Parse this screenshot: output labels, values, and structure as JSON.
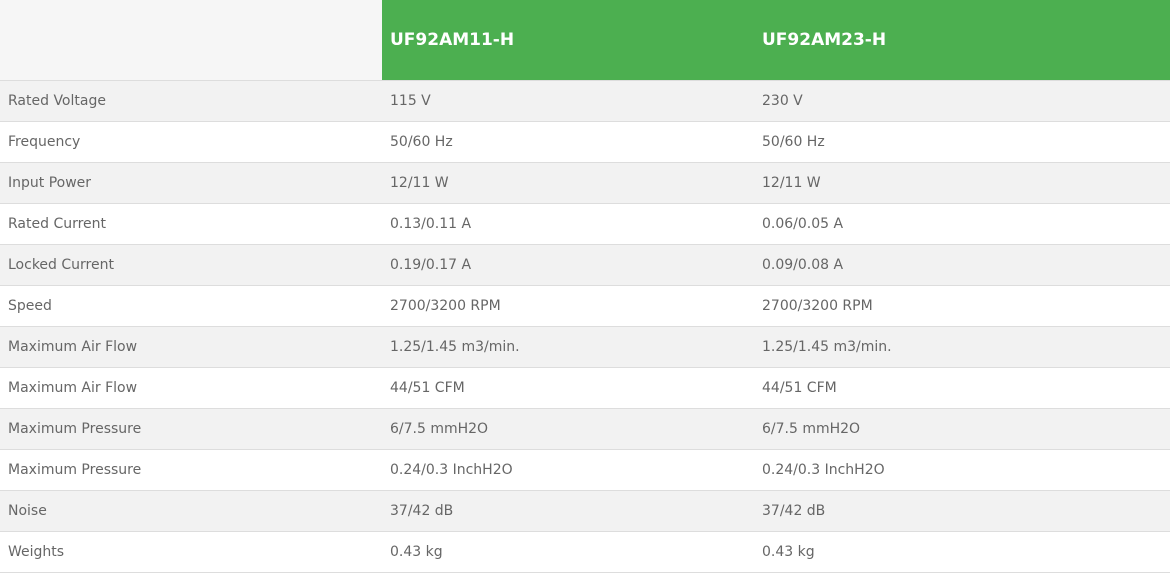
{
  "header": {
    "blank": "",
    "models": [
      "UF92AM11-H",
      "UF92AM23-H"
    ]
  },
  "rows": [
    {
      "label": "Rated Voltage",
      "values": [
        "115 V",
        "230 V"
      ]
    },
    {
      "label": "Frequency",
      "values": [
        "50/60 Hz",
        "50/60 Hz"
      ]
    },
    {
      "label": "Input Power",
      "values": [
        "12/11 W",
        "12/11 W"
      ]
    },
    {
      "label": "Rated Current",
      "values": [
        "0.13/0.11 A",
        "0.06/0.05 A"
      ]
    },
    {
      "label": "Locked Current",
      "values": [
        "0.19/0.17 A",
        "0.09/0.08 A"
      ]
    },
    {
      "label": "Speed",
      "values": [
        "2700/3200 RPM",
        "2700/3200 RPM"
      ]
    },
    {
      "label": "Maximum Air Flow",
      "values": [
        "1.25/1.45 m3/min.",
        "1.25/1.45 m3/min."
      ]
    },
    {
      "label": "Maximum Air Flow",
      "values": [
        "44/51 CFM",
        "44/51 CFM"
      ]
    },
    {
      "label": "Maximum Pressure",
      "values": [
        "6/7.5 mmH2O",
        "6/7.5 mmH2O"
      ]
    },
    {
      "label": "Maximum Pressure",
      "values": [
        "0.24/0.3 InchH2O",
        "0.24/0.3 InchH2O"
      ]
    },
    {
      "label": "Noise",
      "values": [
        "37/42 dB",
        "37/42 dB"
      ]
    },
    {
      "label": "Weights",
      "values": [
        "0.43 kg",
        "0.43 kg"
      ]
    }
  ],
  "colors": {
    "header_green": "#4caf50",
    "stripe": "#f2f2f2",
    "text": "#666666"
  }
}
